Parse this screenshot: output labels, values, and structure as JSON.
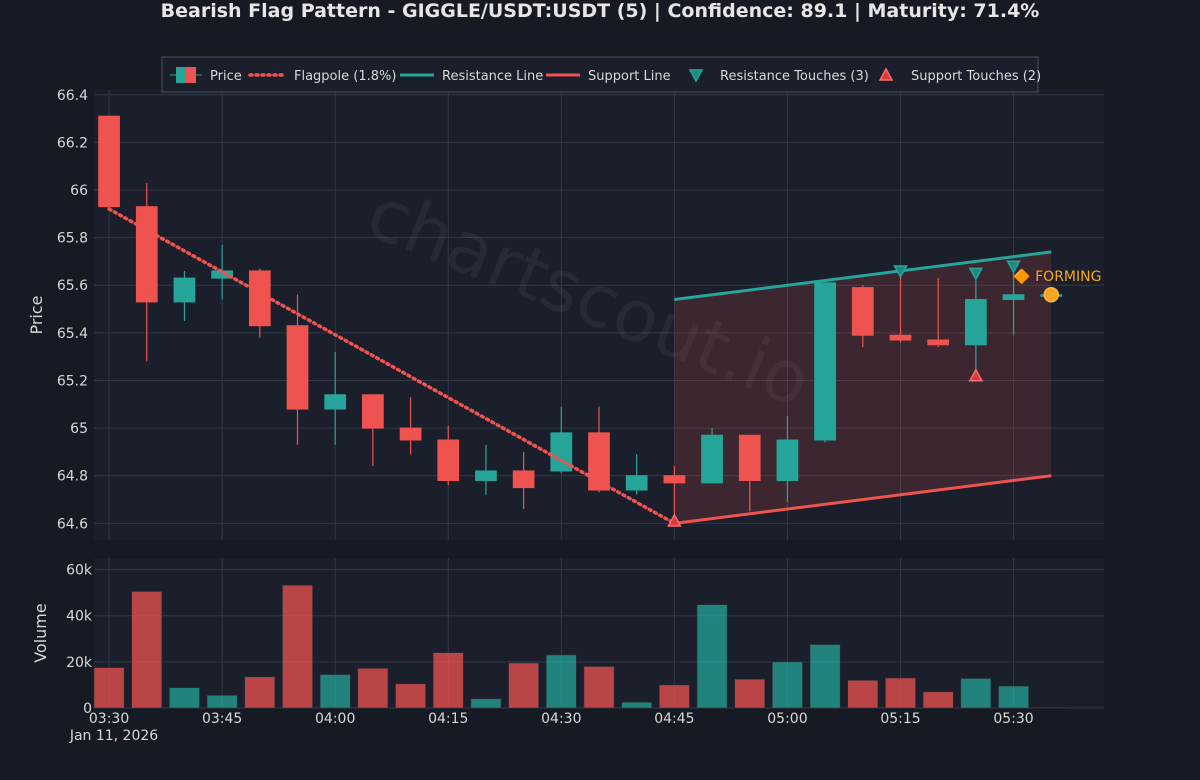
{
  "chart_data": {
    "type": "candlestick",
    "title": "Bearish Flag Pattern - GIGGLE/USDT:USDT (5) | Confidence: 89.1 | Maturity: 71.4%",
    "watermark": "chartscout.io",
    "date_label": "Jan 11, 2026",
    "price_axis": {
      "label": "Price",
      "range": [
        64.53,
        66.42
      ],
      "ticks": [
        64.6,
        64.8,
        65,
        65.2,
        65.4,
        65.6,
        65.8,
        66,
        66.2,
        66.4
      ],
      "tick_labels": [
        "64.6",
        "64.8",
        "65",
        "65.2",
        "65.4",
        "65.6",
        "65.8",
        "66",
        "66.2",
        "66.4"
      ]
    },
    "volume_axis": {
      "label": "Volume",
      "range": [
        0,
        65000
      ],
      "ticks": [
        0,
        20000,
        40000,
        60000
      ],
      "tick_labels": [
        "0",
        "20k",
        "40k",
        "60k"
      ]
    },
    "x_axis": {
      "range": [
        "03:28",
        "05:42"
      ],
      "ticks": [
        "03:30",
        "03:45",
        "04:00",
        "04:15",
        "04:30",
        "04:45",
        "05:00",
        "05:15",
        "05:30"
      ]
    },
    "legend": {
      "placement": "top",
      "items": [
        {
          "label": "Price",
          "kind": "candle"
        },
        {
          "label": "Flagpole (1.8%)",
          "kind": "dotted"
        },
        {
          "label": "Resistance Line",
          "kind": "line",
          "color": "#26a69a"
        },
        {
          "label": "Support Line",
          "kind": "line",
          "color": "#ef5350"
        },
        {
          "label": "Resistance Touches (3)",
          "kind": "tri-down"
        },
        {
          "label": "Support Touches (2)",
          "kind": "tri-up"
        }
      ]
    },
    "colors": {
      "up": "#26a69a",
      "down": "#ef5350",
      "resistance": "#26a69a",
      "support": "#ef5350",
      "status": "#f5a623"
    },
    "candles": [
      {
        "t": "03:30",
        "o": 66.31,
        "h": 66.31,
        "l": 65.92,
        "c": 65.93,
        "v": 17500
      },
      {
        "t": "03:35",
        "o": 65.93,
        "h": 66.03,
        "l": 65.28,
        "c": 65.53,
        "v": 50500
      },
      {
        "t": "03:40",
        "o": 65.53,
        "h": 65.66,
        "l": 65.45,
        "c": 65.63,
        "v": 8800
      },
      {
        "t": "03:45",
        "o": 65.63,
        "h": 65.77,
        "l": 65.54,
        "c": 65.66,
        "v": 5500
      },
      {
        "t": "03:50",
        "o": 65.66,
        "h": 65.67,
        "l": 65.38,
        "c": 65.43,
        "v": 13500
      },
      {
        "t": "03:55",
        "o": 65.43,
        "h": 65.56,
        "l": 64.93,
        "c": 65.08,
        "v": 53200
      },
      {
        "t": "04:00",
        "o": 65.08,
        "h": 65.32,
        "l": 64.93,
        "c": 65.14,
        "v": 14500
      },
      {
        "t": "04:05",
        "o": 65.14,
        "h": 65.14,
        "l": 64.84,
        "c": 65.0,
        "v": 17200
      },
      {
        "t": "04:10",
        "o": 65.0,
        "h": 65.13,
        "l": 64.89,
        "c": 64.95,
        "v": 10500
      },
      {
        "t": "04:15",
        "o": 64.95,
        "h": 65.01,
        "l": 64.76,
        "c": 64.78,
        "v": 24000
      },
      {
        "t": "04:20",
        "o": 64.78,
        "h": 64.93,
        "l": 64.72,
        "c": 64.82,
        "v": 4000
      },
      {
        "t": "04:25",
        "o": 64.82,
        "h": 64.9,
        "l": 64.66,
        "c": 64.75,
        "v": 19500
      },
      {
        "t": "04:30",
        "o": 64.82,
        "h": 65.09,
        "l": 64.81,
        "c": 64.98,
        "v": 23000
      },
      {
        "t": "04:35",
        "o": 64.98,
        "h": 65.09,
        "l": 64.73,
        "c": 64.74,
        "v": 18000
      },
      {
        "t": "04:40",
        "o": 64.74,
        "h": 64.89,
        "l": 64.72,
        "c": 64.8,
        "v": 2500
      },
      {
        "t": "04:45",
        "o": 64.8,
        "h": 64.84,
        "l": 64.6,
        "c": 64.77,
        "v": 10000
      },
      {
        "t": "04:50",
        "o": 64.77,
        "h": 65.0,
        "l": 64.77,
        "c": 64.97,
        "v": 44800
      },
      {
        "t": "04:55",
        "o": 64.97,
        "h": 64.97,
        "l": 64.65,
        "c": 64.78,
        "v": 12500
      },
      {
        "t": "05:00",
        "o": 64.78,
        "h": 65.05,
        "l": 64.69,
        "c": 64.95,
        "v": 20000
      },
      {
        "t": "05:05",
        "o": 64.95,
        "h": 65.61,
        "l": 64.94,
        "c": 65.61,
        "v": 27500
      },
      {
        "t": "05:10",
        "o": 65.59,
        "h": 65.6,
        "l": 65.34,
        "c": 65.39,
        "v": 12000
      },
      {
        "t": "05:15",
        "o": 65.39,
        "h": 65.65,
        "l": 65.36,
        "c": 65.37,
        "v": 13000
      },
      {
        "t": "05:20",
        "o": 65.37,
        "h": 65.63,
        "l": 65.34,
        "c": 65.35,
        "v": 7000
      },
      {
        "t": "05:25",
        "o": 65.35,
        "h": 65.62,
        "l": 65.22,
        "c": 65.54,
        "v": 12800
      },
      {
        "t": "05:30",
        "o": 65.54,
        "h": 65.66,
        "l": 65.39,
        "c": 65.56,
        "v": 9500
      },
      {
        "t": "05:35",
        "o": 65.56,
        "h": 65.56,
        "l": 65.56,
        "c": 65.56,
        "v": 300
      }
    ],
    "flagpole": {
      "start": {
        "t": "03:30",
        "p": 65.92
      },
      "end": {
        "t": "04:45",
        "p": 64.6
      }
    },
    "resistance_line": {
      "start": {
        "t": "04:45",
        "p": 65.54
      },
      "end": {
        "t": "05:35",
        "p": 65.74
      }
    },
    "support_line": {
      "start": {
        "t": "04:45",
        "p": 64.6
      },
      "end": {
        "t": "05:35",
        "p": 64.8
      }
    },
    "resistance_touches": [
      {
        "t": "05:15",
        "p": 65.66
      },
      {
        "t": "05:25",
        "p": 65.65
      },
      {
        "t": "05:30",
        "p": 65.68
      }
    ],
    "support_touches": [
      {
        "t": "04:45",
        "p": 64.61
      },
      {
        "t": "05:25",
        "p": 65.22
      }
    ],
    "current_point": {
      "t": "05:35",
      "p": 65.56
    },
    "status_label": "🔶 FORMING"
  }
}
